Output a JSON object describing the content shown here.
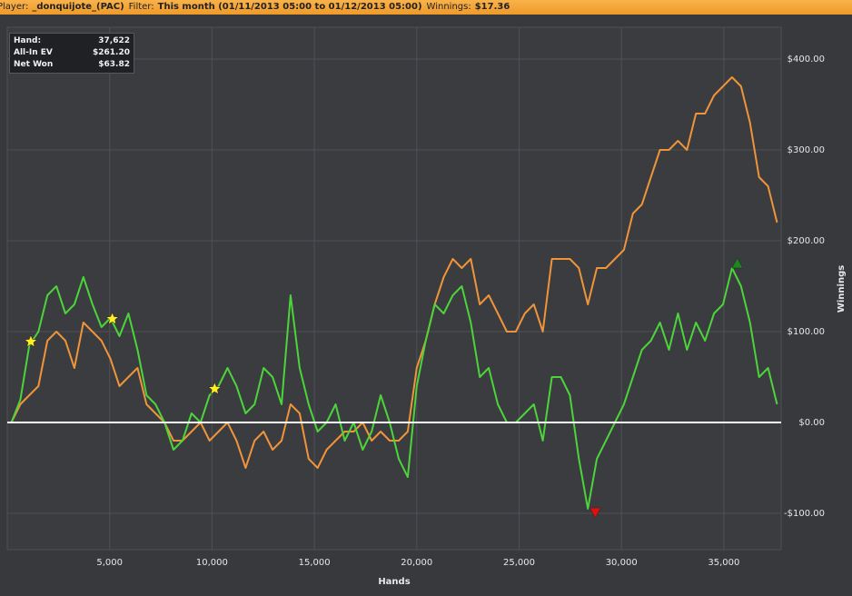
{
  "header": {
    "player_label": "Player:",
    "player": "_donquijote_(PAC)",
    "filter_label": "Filter:",
    "filter": "This month (01/11/2013 05:00 to 01/12/2013 05:00)",
    "winnings_label": "Winnings:",
    "winnings": "$17.36"
  },
  "info": {
    "rows": [
      [
        "Hand:",
        "37,622"
      ],
      [
        "All-In EV",
        "$261.20"
      ],
      [
        "Net Won",
        "$63.82"
      ]
    ]
  },
  "chart_data": {
    "type": "line",
    "x_label": "Hands",
    "y_label": "Winnings",
    "x": [
      200,
      640,
      1080,
      1520,
      1960,
      2400,
      2840,
      3280,
      3720,
      4160,
      4600,
      5040,
      5480,
      5920,
      6360,
      6800,
      7240,
      7680,
      8120,
      8560,
      9000,
      9440,
      9880,
      10320,
      10760,
      11200,
      11640,
      12080,
      12520,
      12960,
      13400,
      13840,
      14280,
      14720,
      15160,
      15600,
      16040,
      16480,
      16920,
      17360,
      17800,
      18240,
      18680,
      19120,
      19560,
      20000,
      20440,
      20880,
      21320,
      21760,
      22200,
      22640,
      23080,
      23520,
      23960,
      24400,
      24840,
      25280,
      25720,
      26160,
      26600,
      27040,
      27480,
      27920,
      28360,
      28800,
      29240,
      29680,
      30120,
      30560,
      31000,
      31440,
      31880,
      32320,
      32760,
      33200,
      33640,
      34080,
      34520,
      34960,
      35400,
      35840,
      36280,
      36720,
      37160,
      37600
    ],
    "series": [
      {
        "color": "#f0943a",
        "values": [
          0,
          20,
          30,
          40,
          90,
          100,
          90,
          60,
          110,
          100,
          90,
          70,
          40,
          50,
          60,
          20,
          10,
          0,
          -20,
          -20,
          -10,
          0,
          -20,
          -10,
          0,
          -20,
          -50,
          -20,
          -10,
          -30,
          -20,
          20,
          10,
          -40,
          -50,
          -30,
          -20,
          -10,
          -10,
          0,
          -20,
          -10,
          -20,
          -20,
          -10,
          60,
          90,
          130,
          160,
          180,
          170,
          180,
          130,
          140,
          120,
          100,
          100,
          120,
          130,
          100,
          180,
          180,
          180,
          170,
          130,
          170,
          170,
          180,
          190,
          230,
          240,
          270,
          300,
          300,
          310,
          300,
          340,
          340,
          360,
          370,
          380,
          370,
          330,
          270,
          260,
          220
        ]
      },
      {
        "color": "#4cd43a",
        "values": [
          0,
          25,
          85,
          100,
          140,
          150,
          120,
          130,
          160,
          130,
          105,
          115,
          95,
          120,
          80,
          30,
          20,
          0,
          -30,
          -20,
          10,
          0,
          30,
          40,
          60,
          40,
          10,
          20,
          60,
          50,
          20,
          140,
          60,
          20,
          -10,
          0,
          20,
          -20,
          0,
          -30,
          -10,
          30,
          0,
          -40,
          -60,
          40,
          90,
          130,
          120,
          140,
          150,
          110,
          50,
          60,
          20,
          0,
          0,
          10,
          20,
          -20,
          50,
          50,
          30,
          -40,
          -95,
          -40,
          -20,
          0,
          20,
          50,
          80,
          90,
          110,
          80,
          120,
          80,
          110,
          90,
          120,
          130,
          170,
          150,
          110,
          50,
          60,
          20
        ]
      }
    ],
    "markers": [
      {
        "shape": "star",
        "color": "#ffee22",
        "x": 1150,
        "y": 89
      },
      {
        "shape": "star",
        "color": "#ffee22",
        "x": 5130,
        "y": 114
      },
      {
        "shape": "star",
        "color": "#ffee22",
        "x": 10130,
        "y": 37
      },
      {
        "shape": "triangle-up",
        "color": "#1a8a1a",
        "x": 35660,
        "y": 175
      },
      {
        "shape": "triangle-down",
        "color": "#e01010",
        "x": 28720,
        "y": -99
      }
    ],
    "xlim": [
      0,
      37800
    ],
    "ylim": [
      -140,
      435
    ],
    "xticks": [
      {
        "value": 5000,
        "label": "5,000"
      },
      {
        "value": 10000,
        "label": "10,000"
      },
      {
        "value": 15000,
        "label": "15,000"
      },
      {
        "value": 20000,
        "label": "20,000"
      },
      {
        "value": 25000,
        "label": "25,000"
      },
      {
        "value": 30000,
        "label": "30,000"
      },
      {
        "value": 35000,
        "label": "35,000"
      }
    ],
    "yticks": [
      {
        "value": -100,
        "label": "-$100.00"
      },
      {
        "value": 0,
        "label": "$0.00"
      },
      {
        "value": 100,
        "label": "$100.00"
      },
      {
        "value": 200,
        "label": "$200.00"
      },
      {
        "value": 300,
        "label": "$300.00"
      },
      {
        "value": 400,
        "label": "$400.00"
      }
    ],
    "grid": true
  }
}
